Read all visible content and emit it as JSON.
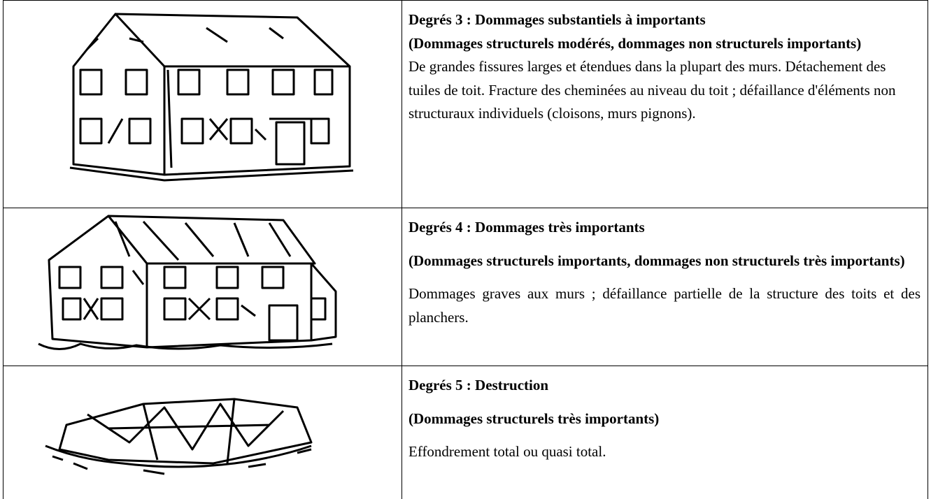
{
  "table": {
    "rows": [
      {
        "title": "Degrés 3 : Dommages substantiels à importants",
        "subtitle": "(Dommages structurels modérés, dommages non structurels importants)",
        "description": "De grandes fissures larges et étendues dans la plupart des murs. Détachement des tuiles de toit. Fracture des cheminées au niveau du toit ; défaillance d'éléments non structuraux individuels (cloisons, murs pignons)."
      },
      {
        "title": "Degrés 4 : Dommages très importants",
        "subtitle": "(Dommages structurels importants, dommages non structurels très importants)",
        "description": "Dommages graves aux murs ; défaillance partielle de la structure des toits et des planchers."
      },
      {
        "title": "Degrés 5 : Destruction",
        "subtitle": "(Dommages structurels très importants)",
        "description": "Effondrement total ou quasi total."
      }
    ]
  }
}
